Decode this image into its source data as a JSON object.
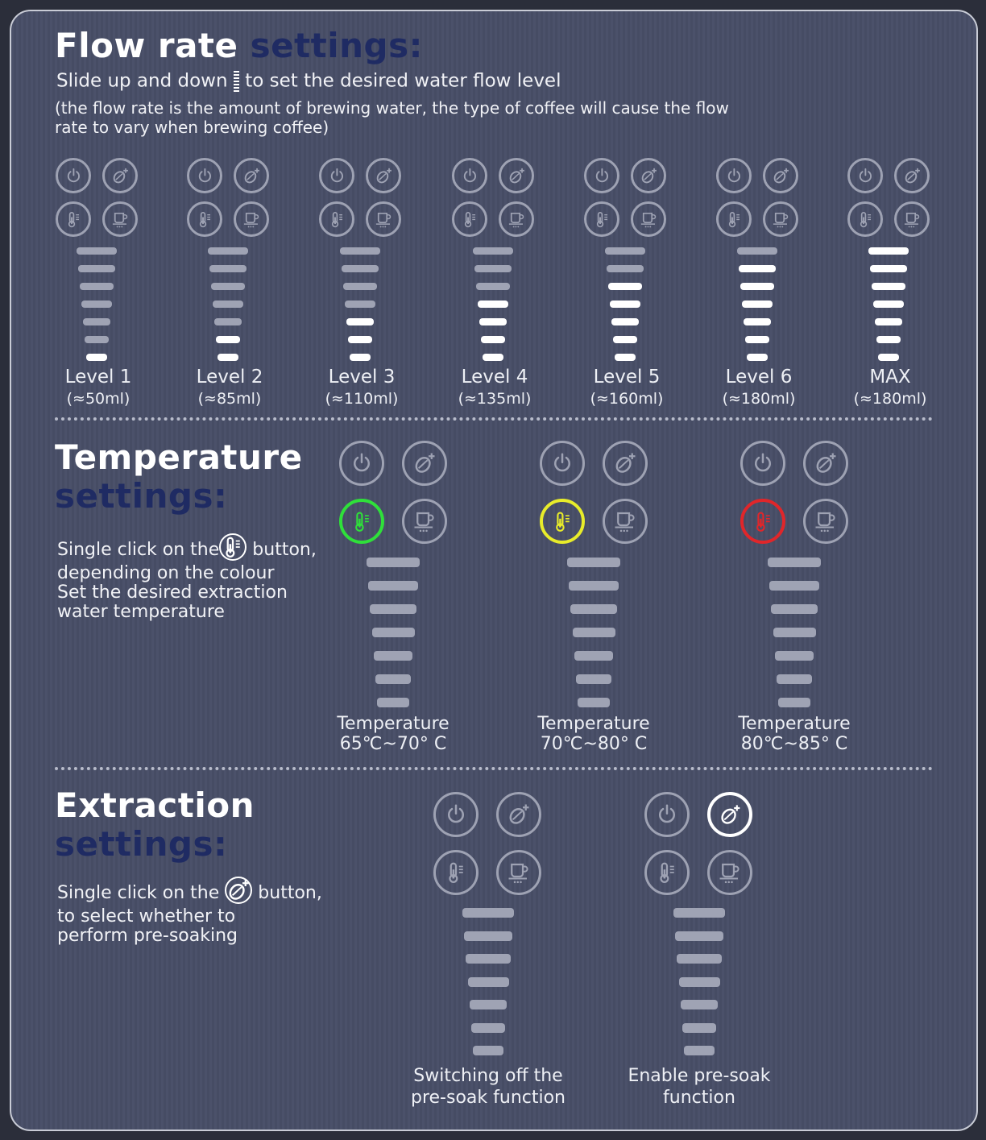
{
  "flow": {
    "title": "Flow rate",
    "title_accent": "settings:",
    "instruction_pre": "Slide up and down",
    "instruction_icon": "slider-bars-icon",
    "instruction_post": "to set the desired water flow level",
    "note": "(the flow rate is the amount of brewing water, the type of coffee will cause the flow rate to vary when brewing coffee)",
    "levels": [
      {
        "label": "Level 1",
        "volume": "(≈50ml)",
        "lit_bars": 1
      },
      {
        "label": "Level 2",
        "volume": "(≈85ml)",
        "lit_bars": 2
      },
      {
        "label": "Level 3",
        "volume": "(≈110ml)",
        "lit_bars": 3
      },
      {
        "label": "Level 4",
        "volume": "(≈135ml)",
        "lit_bars": 4
      },
      {
        "label": "Level 5",
        "volume": "(≈160ml)",
        "lit_bars": 5
      },
      {
        "label": "Level 6",
        "volume": "(≈180ml)",
        "lit_bars": 6
      },
      {
        "label": "MAX",
        "volume": "(≈180ml)",
        "lit_bars": 7
      }
    ]
  },
  "temperature": {
    "title": "Temperature",
    "title_accent": "settings:",
    "desc_pre": "Single click on the",
    "desc_icon": "thermometer-icon",
    "desc_post": "button,",
    "desc_rest": "depending on the colour\nSet the desired extraction\nwater temperature",
    "options": [
      {
        "label": "Temperature",
        "range": "65℃~70° C",
        "color": "#2fe03a"
      },
      {
        "label": "Temperature",
        "range": "70℃~80° C",
        "color": "#e8ec2a"
      },
      {
        "label": "Temperature",
        "range": "80℃~85° C",
        "color": "#e0262a"
      }
    ]
  },
  "extraction": {
    "title": "Extraction",
    "title_accent": "settings:",
    "desc_pre": "Single click on the",
    "desc_icon": "bean-plus-icon",
    "desc_post": "button,",
    "desc_rest": "to select whether to\nperform pre-soaking",
    "options": [
      {
        "caption": "Switching off the\npre-soak function",
        "presoak_active": false
      },
      {
        "caption": "Enable pre-soak\nfunction",
        "presoak_active": true
      }
    ]
  },
  "colors": {
    "accent_title": "#1f2b63",
    "bar_inactive": "#9fa3b4",
    "bar_active": "#ffffff",
    "icon_ring": "#9ea2b3"
  }
}
